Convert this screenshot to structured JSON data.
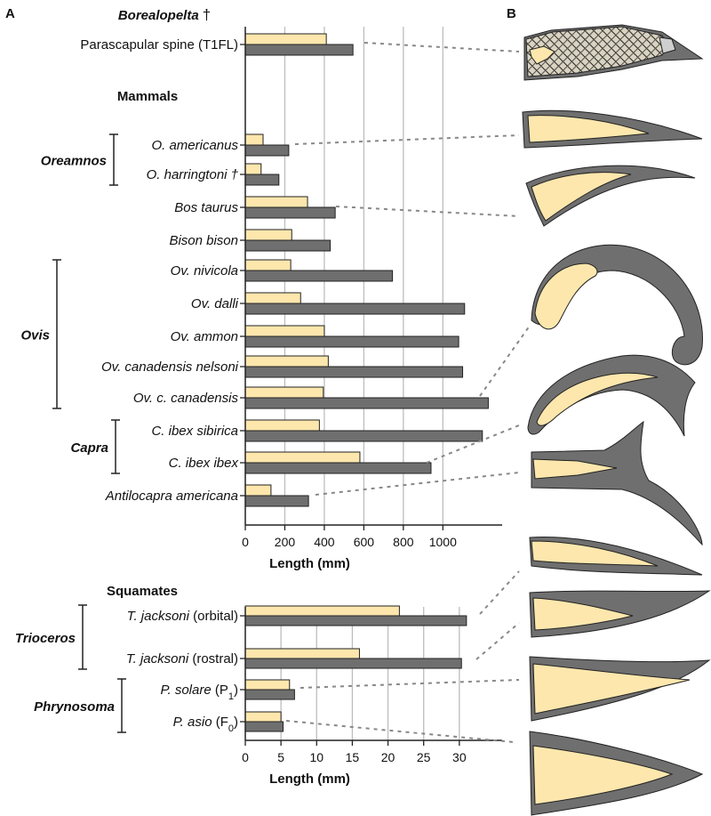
{
  "panel_labels": {
    "a": "A",
    "b": "B"
  },
  "colors": {
    "core": "#fde7ad",
    "sheath": "#6f6f6f",
    "outline": "#222222",
    "grid": "#bdbdbd",
    "connector": "#888888"
  },
  "chart_data": [
    {
      "type": "bar",
      "orientation": "horizontal",
      "xlabel": "Length (mm)",
      "xlim": [
        0,
        1300
      ],
      "xticks": [
        0,
        200,
        400,
        600,
        800,
        1000
      ],
      "grid": true,
      "sections": [
        {
          "title": "Borealopelta",
          "mark": "†",
          "start": 0
        },
        {
          "title": "Mammals",
          "start": 1
        }
      ],
      "categories": [
        "Parascapular spine (T1FL)",
        "O. americanus",
        "O. harringtoni †",
        "Bos taurus",
        "Bison bison",
        "Ov. nivicola",
        "Ov. dalli",
        "Ov. ammon",
        "Ov. canadensis nelsoni",
        "Ov. c. canadensis",
        "C. ibex sibirica",
        "C. ibex ibex",
        "Antilocapra americana"
      ],
      "italic": [
        false,
        true,
        true,
        true,
        true,
        true,
        true,
        true,
        true,
        true,
        true,
        true,
        true
      ],
      "series": [
        {
          "color": "#fde7ad",
          "values": [
            410,
            90,
            80,
            315,
            235,
            230,
            280,
            400,
            420,
            395,
            375,
            580,
            130
          ]
        },
        {
          "color": "#6f6f6f",
          "values": [
            545,
            220,
            170,
            455,
            430,
            745,
            1110,
            1080,
            1100,
            1230,
            1200,
            940,
            320
          ]
        }
      ],
      "groups": [
        {
          "label": "Oreamnos",
          "from": 1,
          "to": 2
        },
        {
          "label": "Ovis",
          "from": 5,
          "to": 9
        },
        {
          "label": "Capra",
          "from": 10,
          "to": 11
        }
      ]
    },
    {
      "type": "bar",
      "orientation": "horizontal",
      "title": "Squamates",
      "xlabel": "Length (mm)",
      "xlim": [
        0,
        36
      ],
      "xticks": [
        0,
        5,
        10,
        15,
        20,
        25,
        30
      ],
      "grid": true,
      "categories": [
        {
          "name": "T. jacksoni",
          "suffix": " (orbital)"
        },
        {
          "name": "T. jacksoni",
          "suffix": " (rostral)"
        },
        {
          "name": "P. solare",
          "suffix": " (P",
          "sub": "1",
          "close": ")"
        },
        {
          "name": "P. asio",
          "suffix": " (F",
          "sub": "0",
          "close": ")"
        }
      ],
      "series": [
        {
          "color": "#fde7ad",
          "values": [
            21.6,
            16.0,
            6.2,
            5.0
          ]
        },
        {
          "color": "#6f6f6f",
          "values": [
            31.0,
            30.3,
            6.9,
            5.3
          ]
        }
      ],
      "groups": [
        {
          "label": "Trioceros",
          "from": 0,
          "to": 1
        },
        {
          "label": "Phrynosoma",
          "from": 2,
          "to": 3
        }
      ]
    }
  ]
}
